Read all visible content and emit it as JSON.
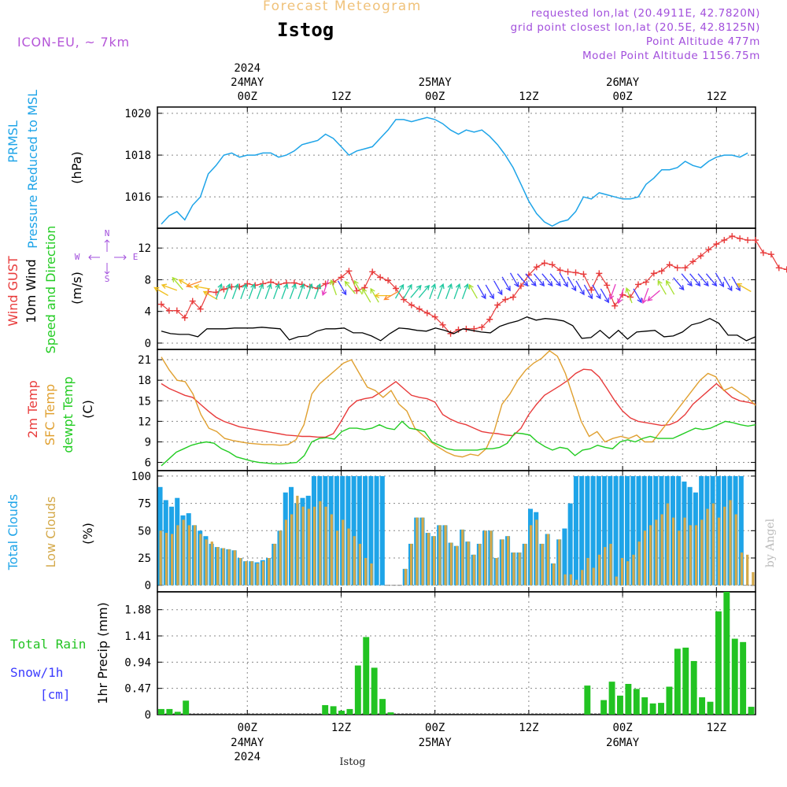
{
  "header": {
    "product_title": "Forecast Meteogram",
    "location": "Istog",
    "model": "ICON-EU, ~ 7km",
    "requested": "requested lon,lat (20.4911E, 42.7820N)",
    "grid_point": "grid point closest lon,lat (20.5E, 42.8125N)",
    "point_altitude": "Point Altitude 477m",
    "model_altitude": "Model Point Altitude 1156.75m",
    "credit": "by Angel",
    "footer_location": "Istog"
  },
  "time_axis": {
    "top_year": "2024",
    "bottom_year": "2024",
    "ticks": [
      {
        "hour": 0,
        "label": "00Z",
        "date": "24MAY"
      },
      {
        "hour": 12,
        "label": "12Z",
        "date": ""
      },
      {
        "hour": 24,
        "label": "00Z",
        "date": "25MAY"
      },
      {
        "hour": 36,
        "label": "12Z",
        "date": ""
      },
      {
        "hour": 48,
        "label": "00Z",
        "date": "26MAY"
      },
      {
        "hour": 60,
        "label": "12Z",
        "date": ""
      }
    ],
    "range_hours": [
      -11.5,
      65
    ]
  },
  "panels": {
    "pressure": {
      "label_1": "PRMSL",
      "label_2": "Pressure Reduced to MSL",
      "unit": "(hPa)",
      "color": "#1ea4e8"
    },
    "wind": {
      "label_gust": "Wind GUST",
      "label_wind": "10m Wind",
      "label_dir": "Speed and Direction",
      "unit": "(m/s)",
      "compass_n": "N",
      "compass_s": "S",
      "compass_w": "W",
      "compass_e": "E",
      "gust_color": "#e83b3b",
      "wind_color": "#000000"
    },
    "temp": {
      "label_2m": "2m Temp",
      "label_sfc": "SFC Temp",
      "label_dew": "dewpt Temp",
      "unit": "(C)",
      "c2m": "#e83b3b",
      "csfc": "#e0a030",
      "cdew": "#22cc22"
    },
    "clouds": {
      "label_total": "Total Clouds",
      "label_low": "Low Clouds",
      "unit": "(%)",
      "ctotal": "#1ea4e8",
      "clow": "#d4a94a"
    },
    "precip": {
      "label_rain": "Total   Rain",
      "label_snow": "Snow/1h",
      "label_snow_unit": "[cm]",
      "unit": "1hr Precip (mm)",
      "crain": "#22c322",
      "csnow": "#3b3bff"
    }
  },
  "chart_data": [
    {
      "type": "line",
      "title": "PRMSL",
      "ylabel": "(hPa)",
      "ylim": [
        1014.5,
        1020.3
      ],
      "yticks": [
        1016,
        1018,
        1020
      ],
      "grid": true,
      "x_start_hour": -11,
      "x_step_hours": 1,
      "series": [
        {
          "name": "PRMSL",
          "values": [
            1014.7,
            1015.1,
            1015.3,
            1014.9,
            1015.6,
            1016.0,
            1017.1,
            1017.5,
            1018.0,
            1018.1,
            1017.9,
            1018.0,
            1018.0,
            1018.1,
            1018.1,
            1017.9,
            1018.0,
            1018.2,
            1018.5,
            1018.6,
            1018.7,
            1019.0,
            1018.8,
            1018.4,
            1018.0,
            1018.2,
            1018.3,
            1018.4,
            1018.8,
            1019.2,
            1019.7,
            1019.7,
            1019.6,
            1019.7,
            1019.8,
            1019.7,
            1019.5,
            1019.2,
            1019.0,
            1019.2,
            1019.1,
            1019.2,
            1018.9,
            1018.5,
            1018.0,
            1017.4,
            1016.6,
            1015.8,
            1015.2,
            1014.8,
            1014.6,
            1014.8,
            1014.9,
            1015.3,
            1016.0,
            1015.9,
            1016.2,
            1016.1,
            1016.0,
            1015.9,
            1015.9,
            1016.0,
            1016.6,
            1016.9,
            1017.3,
            1017.3,
            1017.4,
            1017.7,
            1017.5,
            1017.4,
            1017.7,
            1017.9,
            1018.0,
            1018.0,
            1017.9,
            1018.1
          ]
        }
      ]
    },
    {
      "type": "line",
      "title": "Wind GUST / 10m Wind",
      "ylabel": "(m/s)",
      "ylim": [
        -0.8,
        14.5
      ],
      "yticks": [
        0,
        4,
        8,
        12
      ],
      "grid": true,
      "x_start_hour": -11,
      "x_step_hours": 1,
      "series": [
        {
          "name": "Wind GUST",
          "values": [
            4.9,
            4.1,
            4.1,
            3.2,
            5.3,
            4.3,
            6.5,
            6.4,
            6.8,
            7.1,
            7.1,
            7.5,
            7.3,
            7.5,
            7.7,
            7.4,
            7.6,
            7.6,
            7.4,
            7.1,
            6.9,
            7.5,
            7.7,
            8.3,
            9.1,
            6.6,
            7.0,
            9.0,
            8.3,
            7.9,
            6.9,
            5.5,
            4.8,
            4.3,
            3.8,
            3.3,
            2.3,
            1.2,
            1.7,
            1.8,
            1.8,
            2.0,
            3.0,
            4.8,
            5.5,
            5.8,
            7.2,
            8.6,
            9.6,
            10.1,
            9.9,
            9.2,
            9.0,
            8.9,
            8.7,
            6.7,
            8.8,
            7.3,
            4.7,
            6.1,
            5.8,
            7.4,
            7.7,
            8.8,
            9.1,
            9.9,
            9.5,
            9.5,
            10.3,
            11.0,
            11.8,
            12.5,
            13.0,
            13.5,
            13.2,
            13.0,
            13.0,
            11.4,
            11.2,
            9.5,
            9.3,
            6.0
          ]
        },
        {
          "name": "10m Wind",
          "values": [
            1.5,
            1.2,
            1.1,
            1.1,
            0.8,
            1.8,
            1.8,
            1.8,
            1.9,
            1.9,
            1.9,
            2.0,
            1.9,
            1.8,
            0.4,
            0.8,
            0.9,
            1.5,
            1.8,
            1.8,
            1.9,
            1.3,
            1.3,
            0.9,
            0.3,
            1.2,
            1.9,
            1.8,
            1.6,
            1.5,
            1.9,
            1.6,
            1.2,
            1.8,
            1.6,
            1.4,
            1.3,
            2.1,
            2.5,
            2.8,
            3.3,
            2.9,
            3.1,
            3.0,
            2.8,
            2.2,
            0.6,
            0.7,
            1.6,
            0.6,
            1.6,
            0.5,
            1.4,
            1.5,
            1.6,
            0.8,
            0.9,
            1.4,
            2.3,
            2.6,
            3.1,
            2.5,
            1.0,
            1.0,
            0.3,
            0.8
          ]
        }
      ],
      "wind_arrows": {
        "start_hour": -11,
        "step_hours": 1,
        "speeds": [
          6.5,
          7.0,
          7.5,
          7.5,
          7.5,
          7.0,
          6.0,
          6.5,
          6.5,
          6.5,
          6.5,
          6.5,
          6.5,
          6.5,
          6.5,
          6.5,
          6.5,
          6.5,
          6.5,
          6.5,
          7.0,
          7.0,
          7.0,
          7.0,
          7.0,
          6.0,
          6.0,
          6.0,
          6.0,
          6.5,
          6.5,
          6.5,
          6.5,
          6.5,
          6.5,
          6.5,
          6.5,
          6.5,
          6.5,
          6.5,
          6.5,
          7.0,
          7.5,
          8.0,
          8.0,
          8.0,
          8.0,
          8.0,
          8.0,
          8.0,
          7.5,
          7.0,
          6.5,
          6.5,
          6.0,
          6.5,
          6.0,
          6.0,
          6.0,
          6.0,
          6.0,
          7.0,
          7.0,
          7.5,
          8.0,
          8.0,
          8.0,
          8.0,
          8.0,
          7.5,
          7.5,
          7.0
        ],
        "directions_deg": [
          300,
          290,
          320,
          300,
          250,
          280,
          300,
          20,
          20,
          20,
          20,
          20,
          20,
          20,
          20,
          20,
          20,
          20,
          20,
          20,
          200,
          340,
          150,
          320,
          330,
          330,
          330,
          270,
          240,
          30,
          30,
          40,
          40,
          20,
          20,
          20,
          20,
          20,
          330,
          150,
          150,
          150,
          150,
          150,
          140,
          140,
          140,
          140,
          140,
          150,
          150,
          150,
          150,
          150,
          150,
          200,
          200,
          340,
          150,
          200,
          230,
          330,
          330,
          140,
          140,
          140,
          140,
          140,
          150,
          150,
          150,
          300
        ]
      }
    },
    {
      "type": "line",
      "title": "Temperatures",
      "ylabel": "(C)",
      "ylim": [
        4.8,
        22.5
      ],
      "yticks": [
        6,
        9,
        12,
        15,
        18,
        21
      ],
      "grid": true,
      "x_start_hour": -11,
      "x_step_hours": 1,
      "series": [
        {
          "name": "2m Temp",
          "values": [
            17.5,
            16.8,
            16.3,
            15.8,
            15.5,
            14.5,
            13.5,
            12.6,
            12.0,
            11.6,
            11.2,
            11.0,
            10.8,
            10.6,
            10.4,
            10.2,
            10.0,
            9.9,
            9.8,
            9.8,
            9.7,
            9.7,
            10.2,
            12.0,
            14.0,
            15.0,
            15.3,
            15.5,
            16.2,
            17.0,
            17.8,
            16.8,
            15.8,
            15.5,
            15.3,
            14.8,
            13.0,
            12.3,
            11.8,
            11.5,
            11.0,
            10.5,
            10.3,
            10.2,
            10.0,
            9.9,
            11.0,
            13.0,
            14.5,
            15.8,
            16.5,
            17.2,
            18.0,
            19.0,
            19.6,
            19.5,
            18.5,
            16.8,
            15.0,
            13.5,
            12.5,
            12.0,
            11.8,
            11.6,
            11.4,
            11.5,
            12.0,
            13.0,
            14.5,
            15.5,
            16.5,
            17.5,
            16.5,
            15.5,
            15.0,
            14.8,
            14.5
          ]
        },
        {
          "name": "SFC Temp",
          "values": [
            21.4,
            19.5,
            18.0,
            17.8,
            16.0,
            13.0,
            11.0,
            10.5,
            9.5,
            9.2,
            9.0,
            8.8,
            8.7,
            8.6,
            8.6,
            8.5,
            8.6,
            9.3,
            11.5,
            16.0,
            17.5,
            18.5,
            19.5,
            20.5,
            21.0,
            19.0,
            17.0,
            16.5,
            15.5,
            16.5,
            14.5,
            13.5,
            11.0,
            10.0,
            9.0,
            8.2,
            7.5,
            7.0,
            6.8,
            7.2,
            7.0,
            8.0,
            10.5,
            14.5,
            16.0,
            18.0,
            19.5,
            20.5,
            21.2,
            22.3,
            21.5,
            19.0,
            15.5,
            12.0,
            9.8,
            10.5,
            9.0,
            9.5,
            9.8,
            9.5,
            10.0,
            9.0,
            9.0,
            10.5,
            12.0,
            13.5,
            15.0,
            16.5,
            18.0,
            19.0,
            18.5,
            16.5,
            17.0,
            16.2,
            15.5,
            14.3
          ]
        },
        {
          "name": "dewpt Temp",
          "values": [
            5.5,
            6.5,
            7.5,
            8.0,
            8.5,
            8.8,
            9.0,
            8.8,
            8.0,
            7.5,
            6.8,
            6.5,
            6.2,
            6.0,
            5.9,
            5.8,
            5.8,
            5.9,
            6.0,
            7.0,
            9.0,
            9.5,
            9.6,
            9.4,
            10.5,
            11.0,
            11.0,
            10.8,
            11.0,
            11.5,
            11.0,
            10.8,
            12.0,
            11.0,
            10.8,
            10.5,
            9.0,
            8.5,
            8.0,
            7.8,
            7.8,
            7.8,
            7.8,
            8.0,
            8.0,
            8.2,
            8.8,
            10.3,
            10.2,
            10.0,
            9.0,
            8.3,
            7.8,
            8.2,
            8.0,
            7.0,
            7.8,
            8.0,
            8.5,
            8.2,
            8.0,
            9.0,
            9.3,
            9.0,
            9.5,
            9.8,
            9.5,
            9.5,
            9.5,
            10.0,
            10.5,
            11.0,
            10.8,
            11.0,
            11.5,
            12.0,
            11.8,
            11.5,
            11.3,
            11.5
          ]
        }
      ]
    },
    {
      "type": "bar",
      "title": "Clouds",
      "ylabel": "(%)",
      "ylim": [
        -6,
        105
      ],
      "yticks": [
        0,
        25,
        50,
        75,
        100
      ],
      "grid": true,
      "x_start_hour": -11.3,
      "x_step_hours": 1,
      "series": [
        {
          "name": "Total Clouds",
          "values": [
            90,
            78,
            72,
            80,
            64,
            66,
            55,
            50,
            45,
            38,
            35,
            34,
            33,
            32,
            25,
            22,
            22,
            21,
            23,
            25,
            38,
            50,
            85,
            90,
            75,
            80,
            82,
            100,
            100,
            100,
            100,
            100,
            100,
            100,
            100,
            100,
            100,
            100,
            100,
            100,
            0,
            0,
            0,
            15,
            38,
            62,
            62,
            48,
            45,
            55,
            55,
            39,
            36,
            51,
            40,
            28,
            38,
            50,
            50,
            25,
            42,
            45,
            30,
            30,
            38,
            70,
            67,
            38,
            47,
            20,
            42,
            52,
            75,
            100,
            100,
            100,
            100,
            100,
            100,
            100,
            100,
            100,
            100,
            100,
            100,
            100,
            100,
            100,
            100,
            100,
            100,
            100,
            95,
            90,
            85,
            100,
            100,
            100,
            100,
            100,
            100,
            100,
            100
          ]
        },
        {
          "name": "Low Clouds",
          "values": [
            50,
            48,
            47,
            55,
            60,
            55,
            55,
            47,
            42,
            40,
            35,
            34,
            33,
            32,
            25,
            22,
            22,
            20,
            22,
            25,
            38,
            50,
            60,
            65,
            82,
            72,
            70,
            72,
            77,
            72,
            65,
            50,
            60,
            52,
            45,
            38,
            25,
            20,
            0,
            0,
            0,
            0,
            0,
            15,
            38,
            62,
            62,
            48,
            45,
            55,
            55,
            39,
            36,
            51,
            40,
            28,
            38,
            50,
            50,
            25,
            42,
            45,
            30,
            30,
            38,
            55,
            60,
            38,
            47,
            20,
            42,
            10,
            10,
            5,
            14,
            25,
            16,
            28,
            35,
            38,
            8,
            25,
            22,
            28,
            40,
            50,
            55,
            60,
            65,
            75,
            62,
            50,
            62,
            55,
            55,
            60,
            70,
            75,
            62,
            72,
            78,
            65,
            30,
            28,
            12
          ]
        }
      ]
    },
    {
      "type": "bar",
      "title": "1hr Precip",
      "ylabel": "1hr Precip (mm)",
      "ylim": [
        0,
        2.2
      ],
      "yticks": [
        0,
        0.47,
        0.94,
        1.41,
        1.88
      ],
      "ytick_labels": [
        "0",
        "0.47",
        "0.94",
        "1.41",
        "1.88"
      ],
      "grid": true,
      "x_start_hour": -11,
      "x_step_hours": 1,
      "series": [
        {
          "name": "Total Rain",
          "values": [
            0.1,
            0.1,
            0.05,
            0.25,
            0,
            0,
            0,
            0,
            0,
            0,
            0,
            0,
            0,
            0,
            0,
            0,
            0,
            0,
            0,
            0,
            0.17,
            0.15,
            0.07,
            0.1,
            0.88,
            1.39,
            0.84,
            0.28,
            0.04,
            0,
            0,
            0,
            0,
            0,
            0,
            0,
            0,
            0,
            0,
            0,
            0,
            0,
            0,
            0,
            0,
            0,
            0,
            0,
            0,
            0,
            0,
            0,
            0.52,
            0,
            0.26,
            0.59,
            0.34,
            0.55,
            0.46,
            0.31,
            0.2,
            0.21,
            0.5,
            1.18,
            1.2,
            0.96,
            0.31,
            0.23,
            1.85,
            2.2,
            1.36,
            1.3,
            0.14
          ]
        }
      ]
    }
  ]
}
